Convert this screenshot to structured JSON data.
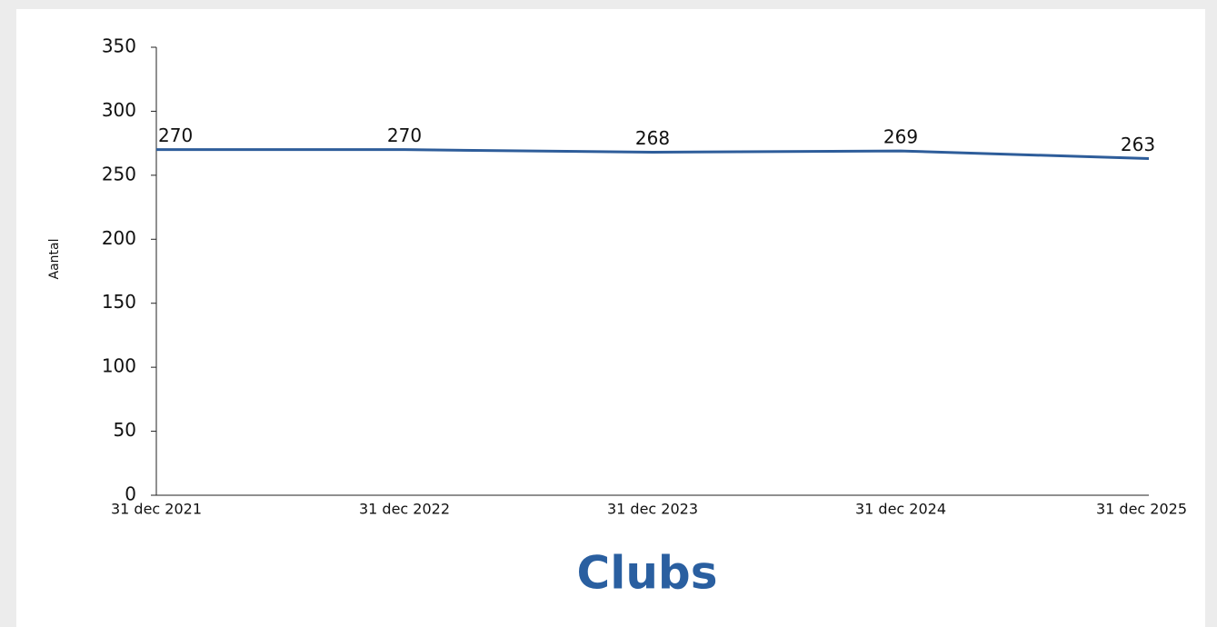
{
  "chart_data": {
    "type": "line",
    "title": "Clubs",
    "ylabel": "Aantal",
    "categories": [
      "31 dec 2021",
      "31 dec 2022",
      "31 dec 2023",
      "31 dec 2024",
      "31 dec 2025"
    ],
    "values": [
      270,
      270,
      268,
      269,
      263
    ],
    "color": "#2e5d9a",
    "ylim": [
      0,
      350
    ],
    "yticks": [
      0,
      50,
      100,
      150,
      200,
      250,
      300,
      350
    ],
    "grid": false
  }
}
